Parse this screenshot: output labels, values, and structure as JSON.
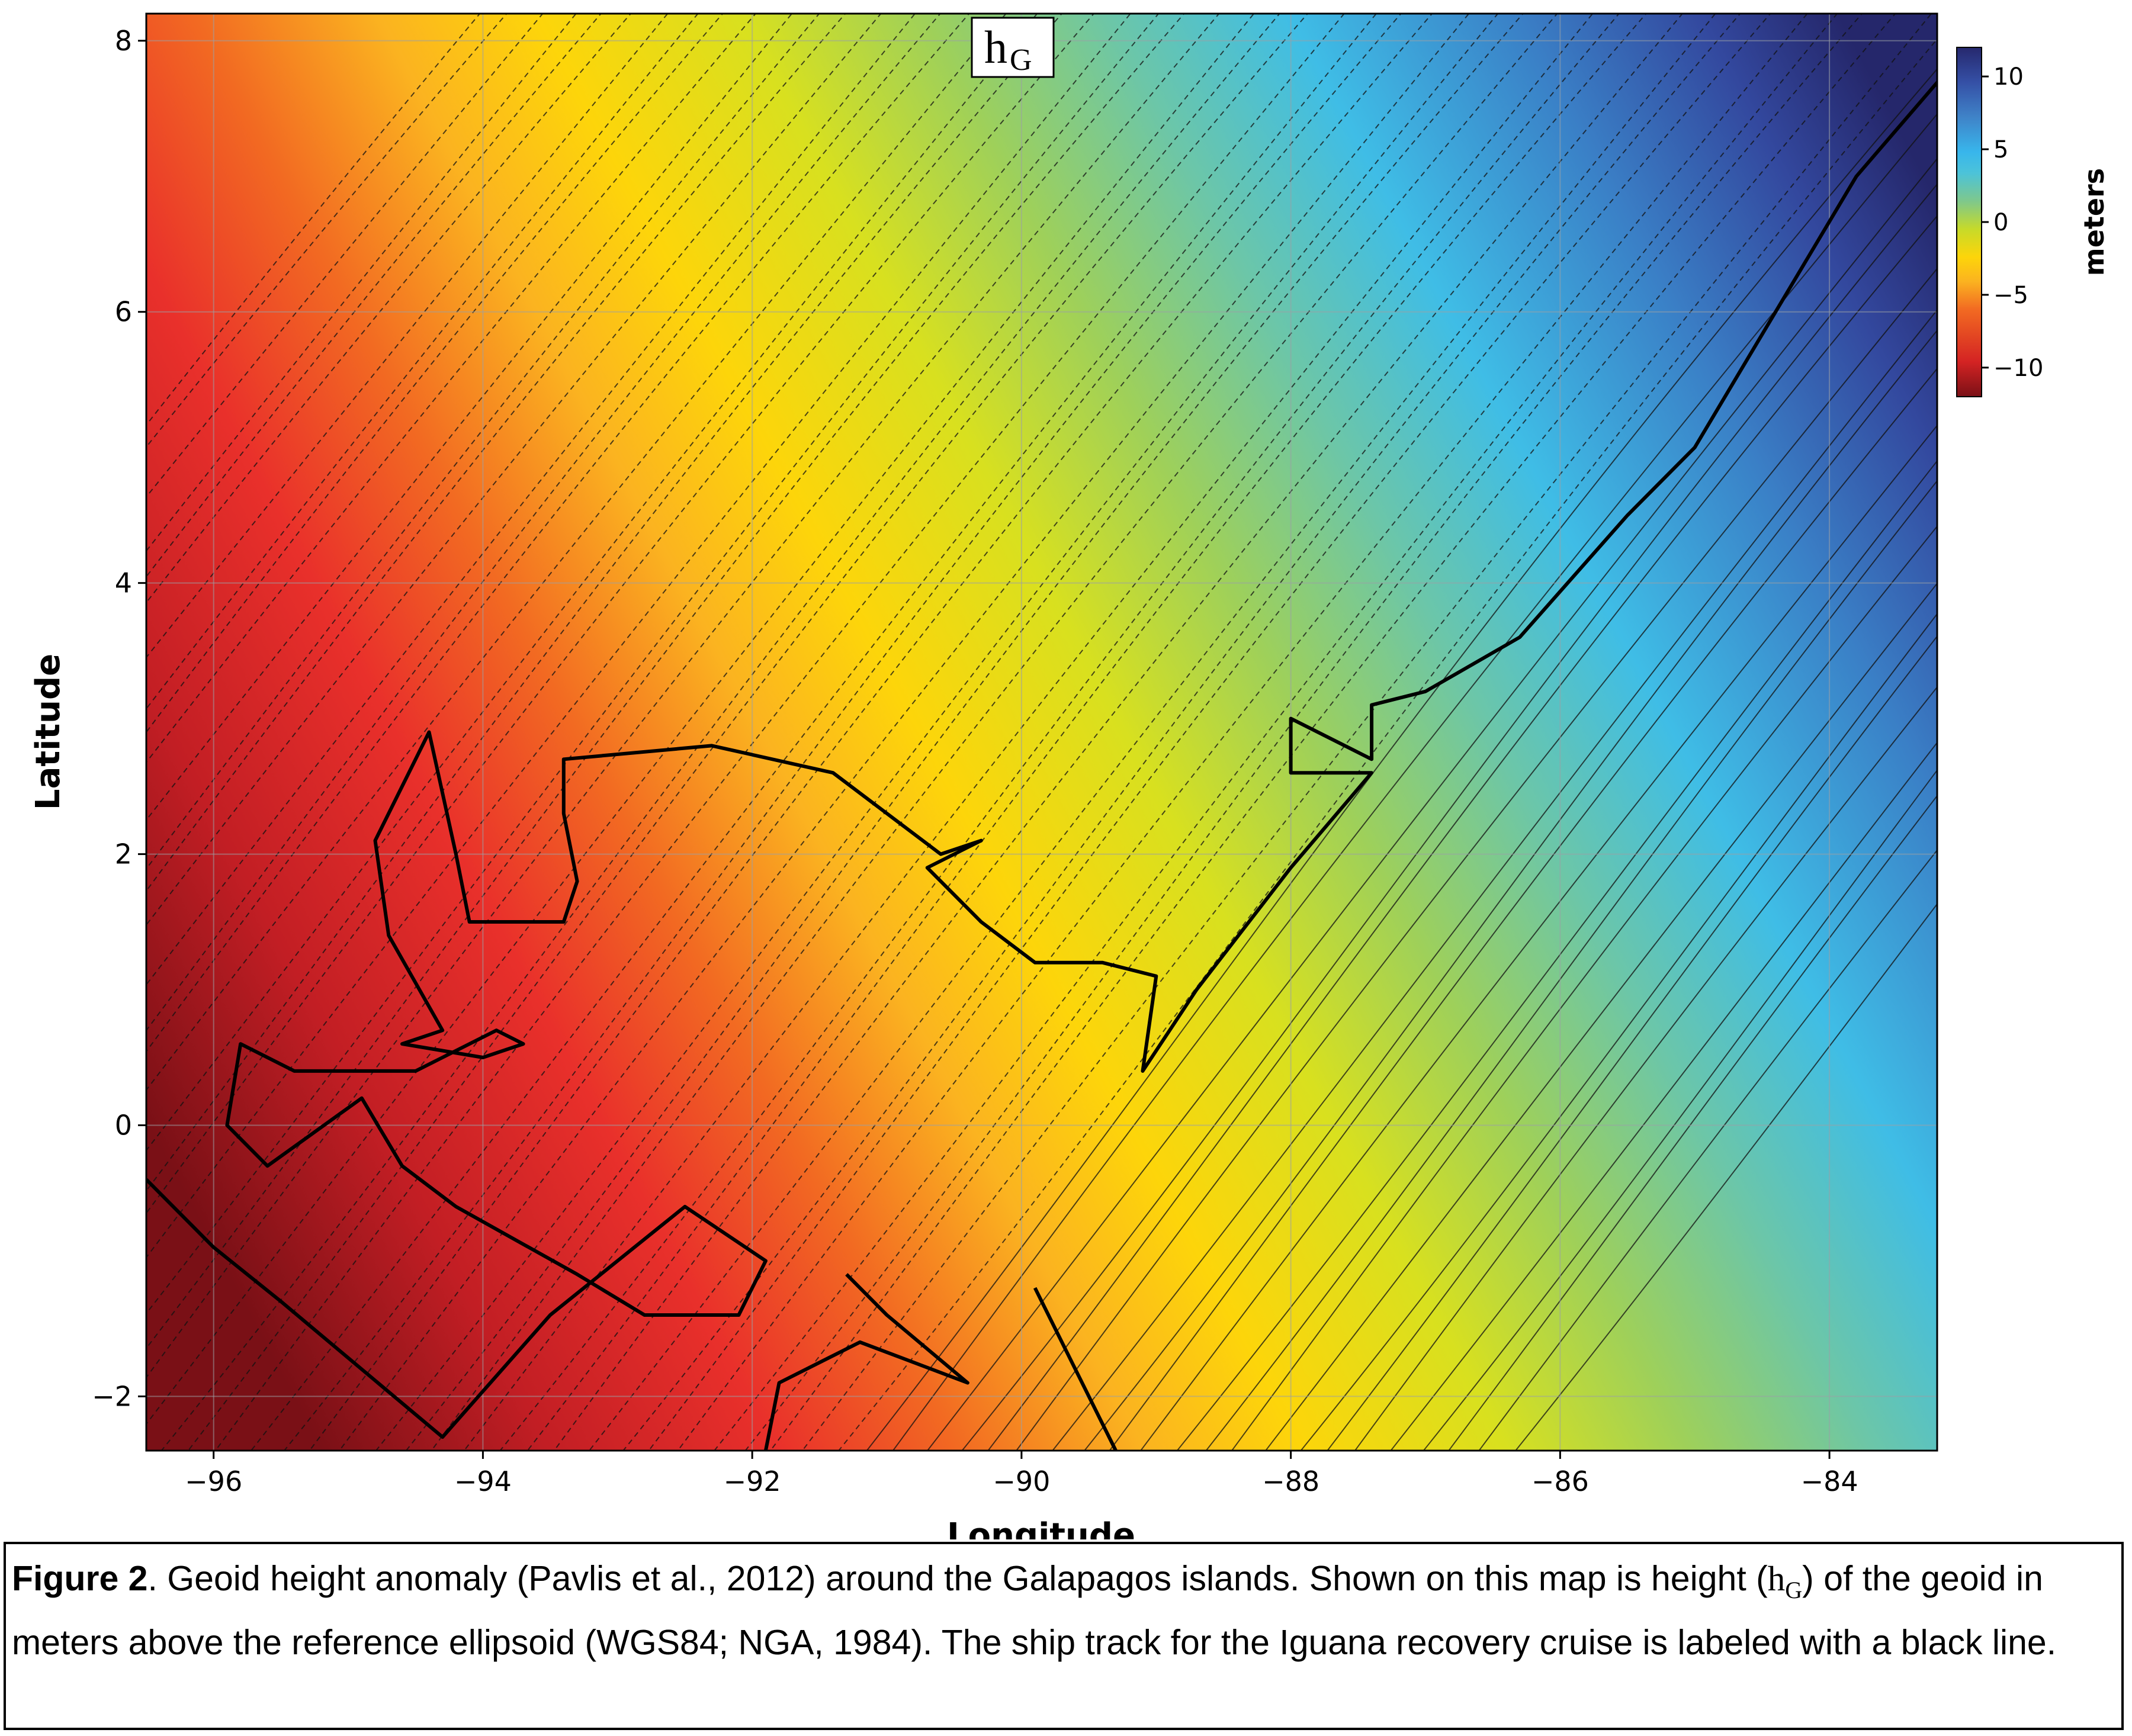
{
  "panel_label": {
    "main": "h",
    "sub": "G"
  },
  "chart_data": {
    "type": "heatmap",
    "title": "hG",
    "xlabel": "Longitude",
    "ylabel": "Latitude",
    "xlim": [
      -96.5,
      -83.2
    ],
    "ylim": [
      -2.4,
      8.2
    ],
    "x_ticks": [
      -96,
      -94,
      -92,
      -90,
      -88,
      -86,
      -84
    ],
    "x_tick_labels": [
      "−96",
      "−94",
      "−92",
      "−90",
      "−88",
      "−86",
      "−84"
    ],
    "y_ticks": [
      -2,
      0,
      2,
      4,
      6,
      8
    ],
    "y_tick_labels": [
      "−2",
      "0",
      "2",
      "4",
      "6",
      "8"
    ],
    "grid": true,
    "colorbar": {
      "label": "meters",
      "range": [
        -12,
        12
      ],
      "ticks": [
        10,
        5,
        0,
        -5,
        -10
      ],
      "tick_labels": [
        "10",
        "5",
        "0",
        "−5",
        "−10"
      ],
      "colors": [
        "#7a1016",
        "#d42323",
        "#f26a22",
        "#fbb320",
        "#fdd50a",
        "#c6da2a",
        "#7ec88c",
        "#4cc3d9",
        "#38b6ec",
        "#3f83c8",
        "#3550a6",
        "#26286e"
      ]
    },
    "contours": {
      "negative_style": "dashed",
      "positive_style": "solid"
    },
    "ship_track": {
      "label": "ship track",
      "points": [
        [
          -82.5,
          8.5
        ],
        [
          -83.8,
          7.0
        ],
        [
          -84.7,
          5.5
        ],
        [
          -85.0,
          5.0
        ],
        [
          -85.5,
          4.5
        ],
        [
          -86.3,
          3.6
        ],
        [
          -87.0,
          3.2
        ],
        [
          -87.4,
          3.1
        ],
        [
          -87.4,
          2.7
        ],
        [
          -88.0,
          3.0
        ],
        [
          -88.0,
          2.6
        ],
        [
          -87.4,
          2.6
        ],
        [
          -88.0,
          1.9
        ],
        [
          -88.7,
          1.0
        ],
        [
          -89.1,
          0.4
        ],
        [
          -89.0,
          1.1
        ],
        [
          -89.4,
          1.2
        ],
        [
          -89.9,
          1.2
        ],
        [
          -90.3,
          1.5
        ],
        [
          -90.7,
          1.9
        ],
        [
          -90.3,
          2.1
        ],
        [
          -90.6,
          2.0
        ],
        [
          -91.0,
          2.3
        ],
        [
          -91.4,
          2.6
        ],
        [
          -92.3,
          2.8
        ],
        [
          -93.4,
          2.7
        ],
        [
          -93.4,
          2.3
        ],
        [
          -93.3,
          1.8
        ],
        [
          -93.4,
          1.5
        ],
        [
          -93.8,
          1.5
        ],
        [
          -94.1,
          1.5
        ],
        [
          -94.2,
          2.0
        ],
        [
          -94.4,
          2.9
        ],
        [
          -94.8,
          2.1
        ],
        [
          -94.7,
          1.4
        ],
        [
          -94.3,
          0.7
        ],
        [
          -94.6,
          0.6
        ],
        [
          -94.0,
          0.5
        ],
        [
          -93.7,
          0.6
        ],
        [
          -93.9,
          0.7
        ],
        [
          -94.3,
          0.5
        ],
        [
          -94.5,
          0.4
        ],
        [
          -95.4,
          0.4
        ],
        [
          -95.8,
          0.6
        ],
        [
          -95.9,
          0.0
        ],
        [
          -95.6,
          -0.3
        ],
        [
          -94.9,
          0.2
        ],
        [
          -94.6,
          -0.3
        ],
        [
          -94.2,
          -0.6
        ],
        [
          -93.3,
          -1.1
        ],
        [
          -92.8,
          -1.4
        ],
        [
          -92.1,
          -1.4
        ],
        [
          -91.9,
          -1.0
        ],
        [
          -92.5,
          -0.6
        ],
        [
          -93.5,
          -1.4
        ],
        [
          -94.3,
          -2.3
        ],
        [
          -95.5,
          -1.3
        ],
        [
          -96.0,
          -0.9
        ],
        [
          -96.5,
          -0.4
        ]
      ],
      "south_legs": [
        [
          [
            -91.9,
            -2.4
          ],
          [
            -91.8,
            -1.9
          ],
          [
            -91.2,
            -1.6
          ],
          [
            -90.4,
            -1.9
          ],
          [
            -91.0,
            -1.4
          ],
          [
            -91.3,
            -1.1
          ]
        ],
        [
          [
            -89.3,
            -2.4
          ],
          [
            -89.6,
            -1.8
          ],
          [
            -89.9,
            -1.2
          ]
        ]
      ]
    }
  },
  "caption": {
    "label": "Figure 2",
    "text_1": ". Geoid height anomaly (Pavlis et al., 2012) around the Galapagos islands. Shown on this map is height (",
    "symbol": "h",
    "symbol_sub": "G",
    "text_2": ") of the geoid in meters above the reference ellipsoid (WGS84; NGA, 1984). The ship track for the Iguana recovery cruise is labeled with a black line."
  }
}
